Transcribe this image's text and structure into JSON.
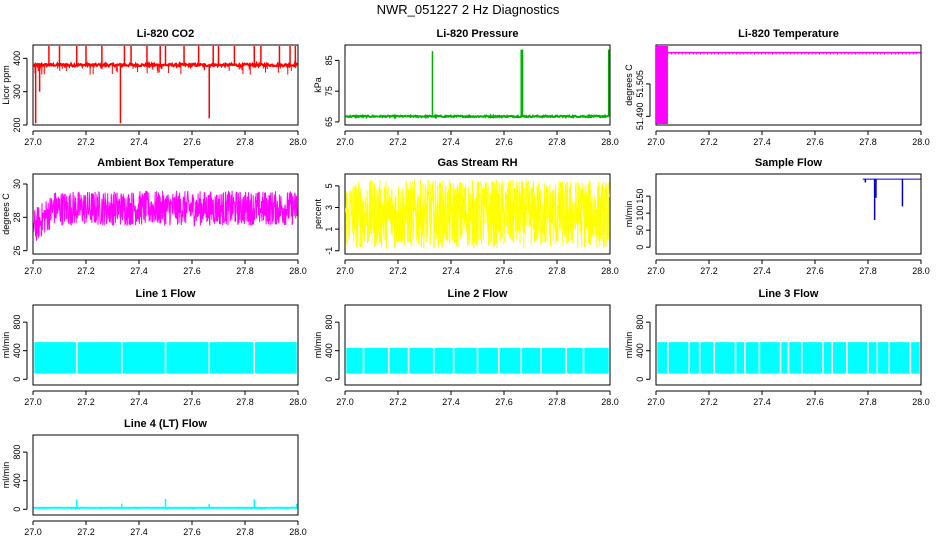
{
  "page_title": "NWR_051227  2 Hz Diagnostics",
  "chart_data": [
    {
      "type": "line",
      "title": "Li-820 CO2",
      "ylabel": "Licor ppm",
      "xlabel": "",
      "color": "#ff0000",
      "xlim": [
        27.0,
        28.0
      ],
      "ylim": [
        200,
        440
      ],
      "yticks": [
        200,
        300,
        400
      ],
      "xticks": [
        27.0,
        27.2,
        27.4,
        27.6,
        27.8,
        28.0
      ],
      "xtick_labels": [
        "27.0",
        "27.2",
        "27.4",
        "27.6",
        "27.8",
        "28.0"
      ],
      "pattern": "baseline_spikes",
      "baseline": 380,
      "noise": 4,
      "spikes": [
        [
          27.01,
          205
        ],
        [
          27.025,
          300
        ],
        [
          27.06,
          470
        ],
        [
          27.1,
          470
        ],
        [
          27.165,
          470
        ],
        [
          27.2,
          470
        ],
        [
          27.26,
          470
        ],
        [
          27.33,
          205
        ],
        [
          27.345,
          470
        ],
        [
          27.37,
          470
        ],
        [
          27.43,
          470
        ],
        [
          27.48,
          470
        ],
        [
          27.5,
          470
        ],
        [
          27.57,
          470
        ],
        [
          27.625,
          470
        ],
        [
          27.665,
          220
        ],
        [
          27.68,
          470
        ],
        [
          27.7,
          470
        ],
        [
          27.76,
          470
        ],
        [
          27.835,
          470
        ],
        [
          27.86,
          470
        ],
        [
          27.93,
          470
        ],
        [
          27.97,
          470
        ],
        [
          27.99,
          470
        ]
      ]
    },
    {
      "type": "line",
      "title": "Li-820 Pressure",
      "ylabel": "kPa",
      "xlabel": "",
      "color": "#00b000",
      "xlim": [
        27.0,
        28.0
      ],
      "ylim": [
        64,
        90
      ],
      "yticks": [
        65,
        75,
        85
      ],
      "xticks": [
        27.0,
        27.2,
        27.4,
        27.6,
        27.8,
        28.0
      ],
      "xtick_labels": [
        "27.0",
        "27.2",
        "27.4",
        "27.6",
        "27.8",
        "28.0"
      ],
      "pattern": "baseline_spikes",
      "baseline": 66.8,
      "noise": 0.25,
      "spikes": [
        [
          27.0,
          86
        ],
        [
          27.33,
          88
        ],
        [
          27.665,
          88.5
        ],
        [
          27.67,
          88.5
        ],
        [
          27.995,
          88.5
        ]
      ]
    },
    {
      "type": "line",
      "title": "Li-820 Temperature",
      "ylabel": "degrees C",
      "xlabel": "",
      "color": "#ff00ff",
      "xlim": [
        27.0,
        28.0
      ],
      "ylim": [
        51.486,
        51.523
      ],
      "yticks": [
        51.49,
        51.505
      ],
      "ytick_labels": [
        "51.490",
        "51.505"
      ],
      "xticks": [
        27.0,
        27.2,
        27.4,
        27.6,
        27.8,
        28.0
      ],
      "xtick_labels": [
        "27.0",
        "27.2",
        "27.4",
        "27.6",
        "27.8",
        "28.0"
      ],
      "pattern": "temp_block",
      "baseline": 51.5195,
      "block": [
        27.0,
        27.045
      ]
    },
    {
      "type": "line",
      "title": "Ambient Box Temperature",
      "ylabel": "degrees C",
      "xlabel": "",
      "color": "#ff00ff",
      "xlim": [
        27.0,
        28.0
      ],
      "ylim": [
        25.8,
        30.6
      ],
      "yticks": [
        26,
        28,
        30
      ],
      "xticks": [
        27.0,
        27.2,
        27.4,
        27.6,
        27.8,
        28.0
      ],
      "xtick_labels": [
        "27.0",
        "27.2",
        "27.4",
        "27.6",
        "27.8",
        "28.0"
      ],
      "pattern": "noisy_band",
      "low": 27.5,
      "high": 29.6,
      "start_low": 26.3,
      "start_high": 28.4
    },
    {
      "type": "line",
      "title": "Gas Stream RH",
      "ylabel": "percent",
      "xlabel": "",
      "color": "#ffff00",
      "xlim": [
        27.0,
        28.0
      ],
      "ylim": [
        -1.3,
        6.1
      ],
      "yticks": [
        -1,
        1,
        3,
        5
      ],
      "xticks": [
        27.0,
        27.2,
        27.4,
        27.6,
        27.8,
        28.0
      ],
      "xtick_labels": [
        "27.0",
        "27.2",
        "27.4",
        "27.6",
        "27.8",
        "28.0"
      ],
      "pattern": "noisy_band",
      "low": -0.8,
      "high": 5.6,
      "start_low": -0.8,
      "start_high": 5.6
    },
    {
      "type": "line",
      "title": "Sample Flow",
      "ylabel": "ml/min",
      "xlabel": "",
      "color": "#0000cc",
      "xlim": [
        27.0,
        28.0
      ],
      "ylim": [
        -20,
        215
      ],
      "yticks": [
        0,
        50,
        100,
        150
      ],
      "xticks": [
        27.0,
        27.2,
        27.4,
        27.6,
        27.8,
        28.0
      ],
      "xtick_labels": [
        "27.0",
        "27.2",
        "27.4",
        "27.6",
        "27.8",
        "28.0"
      ],
      "pattern": "sample_flow",
      "baseline": 200,
      "spikes": [
        [
          27.79,
          190
        ],
        [
          27.825,
          80
        ],
        [
          27.83,
          145
        ],
        [
          27.93,
          120
        ]
      ]
    },
    {
      "type": "line",
      "title": "Line 1 Flow",
      "ylabel": "ml/min",
      "xlabel": "",
      "color": "#00ffff",
      "xlim": [
        27.0,
        28.0
      ],
      "ylim": [
        -80,
        1040
      ],
      "yticks": [
        0,
        400,
        800
      ],
      "xticks": [
        27.0,
        27.2,
        27.4,
        27.6,
        27.8,
        28.0
      ],
      "xtick_labels": [
        "27.0",
        "27.2",
        "27.4",
        "27.6",
        "27.8",
        "28.0"
      ],
      "pattern": "flow_band",
      "low": 80,
      "high": 520,
      "gaps": [
        27.165,
        27.335,
        27.5,
        27.665,
        27.835
      ]
    },
    {
      "type": "line",
      "title": "Line 2 Flow",
      "ylabel": "ml/min",
      "xlabel": "",
      "color": "#00ffff",
      "xlim": [
        27.0,
        28.0
      ],
      "ylim": [
        -80,
        1040
      ],
      "yticks": [
        0,
        400,
        800
      ],
      "xticks": [
        27.0,
        27.2,
        27.4,
        27.6,
        27.8,
        28.0
      ],
      "xtick_labels": [
        "27.0",
        "27.2",
        "27.4",
        "27.6",
        "27.8",
        "28.0"
      ],
      "pattern": "flow_band",
      "low": 80,
      "high": 440,
      "gaps": [
        27.07,
        27.165,
        27.24,
        27.335,
        27.41,
        27.5,
        27.58,
        27.665,
        27.74,
        27.835,
        27.9
      ]
    },
    {
      "type": "line",
      "title": "Line 3 Flow",
      "ylabel": "ml/min",
      "xlabel": "",
      "color": "#00ffff",
      "xlim": [
        27.0,
        28.0
      ],
      "ylim": [
        -80,
        1040
      ],
      "yticks": [
        0,
        400,
        800
      ],
      "xticks": [
        27.0,
        27.2,
        27.4,
        27.6,
        27.8,
        28.0
      ],
      "xtick_labels": [
        "27.0",
        "27.2",
        "27.4",
        "27.6",
        "27.8",
        "28.0"
      ],
      "pattern": "flow_band",
      "low": 80,
      "high": 520,
      "gaps": [
        27.045,
        27.125,
        27.165,
        27.22,
        27.3,
        27.335,
        27.39,
        27.47,
        27.5,
        27.55,
        27.63,
        27.665,
        27.72,
        27.8,
        27.835,
        27.88,
        27.96
      ]
    },
    {
      "type": "line",
      "title": "Line 4 (LT) Flow",
      "ylabel": "ml/min",
      "xlabel": "",
      "color": "#00ffff",
      "xlim": [
        27.0,
        28.0
      ],
      "ylim": [
        -80,
        1040
      ],
      "yticks": [
        0,
        400,
        800
      ],
      "xticks": [
        27.0,
        27.2,
        27.4,
        27.6,
        27.8,
        28.0
      ],
      "xtick_labels": [
        "27.0",
        "27.2",
        "27.4",
        "27.6",
        "27.8",
        "28.0"
      ],
      "pattern": "baseline_spikes",
      "baseline": 20,
      "noise": 2,
      "spikes": [
        [
          27.165,
          140
        ],
        [
          27.335,
          80
        ],
        [
          27.5,
          145
        ],
        [
          27.665,
          75
        ],
        [
          27.835,
          140
        ],
        [
          27.995,
          75
        ]
      ]
    }
  ]
}
